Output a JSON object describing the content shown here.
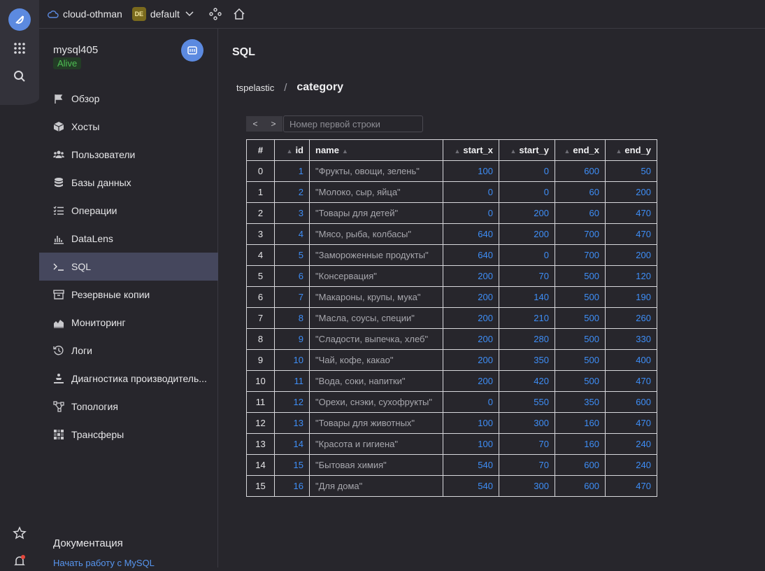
{
  "topbar": {
    "cloud": "cloud-othman",
    "folder_badge": "DE",
    "folder": "default"
  },
  "sidebar": {
    "cluster_name": "mysql405",
    "status": "Alive",
    "items": [
      {
        "label": "Обзор",
        "icon": "flag-icon"
      },
      {
        "label": "Хосты",
        "icon": "cube-icon"
      },
      {
        "label": "Пользователи",
        "icon": "users-icon"
      },
      {
        "label": "Базы данных",
        "icon": "database-icon"
      },
      {
        "label": "Операции",
        "icon": "list-icon"
      },
      {
        "label": "DataLens",
        "icon": "chart-icon"
      },
      {
        "label": "SQL",
        "icon": "terminal-icon",
        "active": true
      },
      {
        "label": "Резервные копии",
        "icon": "archive-icon"
      },
      {
        "label": "Мониторинг",
        "icon": "monitoring-icon"
      },
      {
        "label": "Логи",
        "icon": "history-icon"
      },
      {
        "label": "Диагностика производитель...",
        "icon": "diagnostics-icon"
      },
      {
        "label": "Топология",
        "icon": "topology-icon"
      },
      {
        "label": "Трансферы",
        "icon": "transfer-icon"
      }
    ],
    "docs_title": "Документация",
    "docs_link": "Начать работу с MySQL"
  },
  "main": {
    "title": "SQL",
    "breadcrumb": {
      "database": "tspelastic",
      "separator": "/",
      "table": "category"
    },
    "pager": {
      "prev": "<",
      "next": ">",
      "placeholder": "Номер первой строки"
    },
    "columns": [
      "#",
      "id",
      "name",
      "start_x",
      "start_y",
      "end_x",
      "end_y"
    ],
    "rows": [
      [
        "0",
        "1",
        "\"Фрукты, овощи, зелень\"",
        "100",
        "0",
        "600",
        "50"
      ],
      [
        "1",
        "2",
        "\"Молоко, сыр, яйца\"",
        "0",
        "0",
        "60",
        "200"
      ],
      [
        "2",
        "3",
        "\"Товары для детей\"",
        "0",
        "200",
        "60",
        "470"
      ],
      [
        "3",
        "4",
        "\"Мясо, рыба, колбасы\"",
        "640",
        "200",
        "700",
        "470"
      ],
      [
        "4",
        "5",
        "\"Замороженные продукты\"",
        "640",
        "0",
        "700",
        "200"
      ],
      [
        "5",
        "6",
        "\"Консервация\"",
        "200",
        "70",
        "500",
        "120"
      ],
      [
        "6",
        "7",
        "\"Макароны, крупы, мука\"",
        "200",
        "140",
        "500",
        "190"
      ],
      [
        "7",
        "8",
        "\"Масла, соусы, специи\"",
        "200",
        "210",
        "500",
        "260"
      ],
      [
        "8",
        "9",
        "\"Сладости, выпечка, хлеб\"",
        "200",
        "280",
        "500",
        "330"
      ],
      [
        "9",
        "10",
        "\"Чай, кофе, какао\"",
        "200",
        "350",
        "500",
        "400"
      ],
      [
        "10",
        "11",
        "\"Вода, соки, напитки\"",
        "200",
        "420",
        "500",
        "470"
      ],
      [
        "11",
        "12",
        "\"Орехи, снэки, сухофрукты\"",
        "0",
        "550",
        "350",
        "600"
      ],
      [
        "12",
        "13",
        "\"Товары для животных\"",
        "100",
        "300",
        "160",
        "470"
      ],
      [
        "13",
        "14",
        "\"Красота и гигиена\"",
        "100",
        "70",
        "160",
        "240"
      ],
      [
        "14",
        "15",
        "\"Бытовая химия\"",
        "540",
        "70",
        "600",
        "240"
      ],
      [
        "15",
        "16",
        "\"Для дома\"",
        "540",
        "300",
        "600",
        "470"
      ]
    ]
  },
  "colors": {
    "accent": "#5c8ae0",
    "link": "#3e8ef7",
    "status_ok": "#4fbf54"
  }
}
